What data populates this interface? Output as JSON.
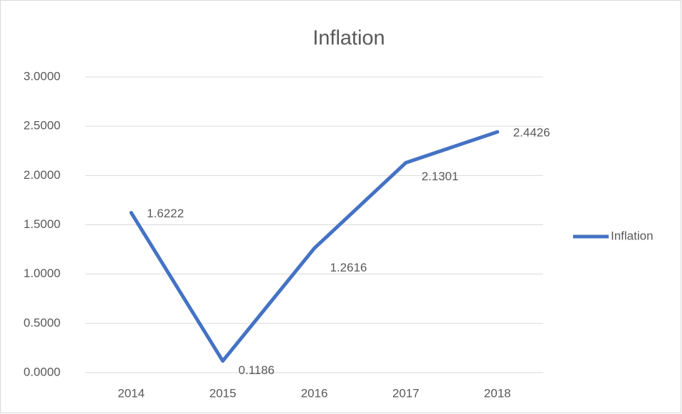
{
  "chart_data": {
    "type": "line",
    "title": "Inflation",
    "categories": [
      "2014",
      "2015",
      "2016",
      "2017",
      "2018"
    ],
    "series": [
      {
        "name": "Inflation",
        "color": "#4472c4",
        "values": [
          1.6222,
          0.1186,
          1.2616,
          2.1301,
          2.4426
        ]
      }
    ],
    "ylim": [
      0,
      3
    ],
    "yticks": [
      {
        "value": 0,
        "label": "0.0000"
      },
      {
        "value": 0.5,
        "label": "0.5000"
      },
      {
        "value": 1,
        "label": "1.0000"
      },
      {
        "value": 1.5,
        "label": "1.5000"
      },
      {
        "value": 2,
        "label": "2.0000"
      },
      {
        "value": 2.5,
        "label": "2.5000"
      },
      {
        "value": 3,
        "label": "3.0000"
      }
    ],
    "grid": true,
    "legend": "right"
  }
}
